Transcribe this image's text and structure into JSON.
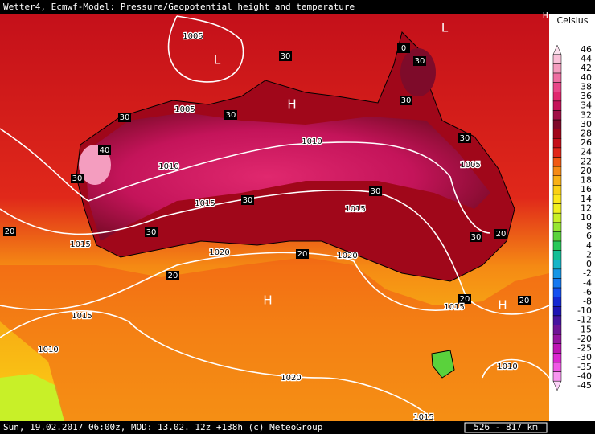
{
  "header": {
    "title": "Wetter4, Ecmwf-Model: Pressure/Geopotential height and temperature",
    "corner": "H"
  },
  "legend": {
    "title": "Celsius",
    "items": [
      {
        "value": 46,
        "color": "#fbe0ee"
      },
      {
        "value": 44,
        "color": "#f9c0d8"
      },
      {
        "value": 42,
        "color": "#f49dbf"
      },
      {
        "value": 40,
        "color": "#ee6fa2"
      },
      {
        "value": 38,
        "color": "#e84889"
      },
      {
        "value": 36,
        "color": "#e0286e"
      },
      {
        "value": 34,
        "color": "#c4145a"
      },
      {
        "value": 32,
        "color": "#a01046"
      },
      {
        "value": 30,
        "color": "#7e0b2a"
      },
      {
        "value": 28,
        "color": "#a0071a"
      },
      {
        "value": 26,
        "color": "#c4101a"
      },
      {
        "value": 24,
        "color": "#e0281a"
      },
      {
        "value": 22,
        "color": "#f05a14"
      },
      {
        "value": 20,
        "color": "#f58a14"
      },
      {
        "value": 18,
        "color": "#f8b014"
      },
      {
        "value": 16,
        "color": "#fbd014"
      },
      {
        "value": 14,
        "color": "#fde81a"
      },
      {
        "value": 12,
        "color": "#f0f020"
      },
      {
        "value": 10,
        "color": "#c8f028"
      },
      {
        "value": 8,
        "color": "#96e632"
      },
      {
        "value": 6,
        "color": "#5ad23c"
      },
      {
        "value": 4,
        "color": "#28c85a"
      },
      {
        "value": 2,
        "color": "#14be96"
      },
      {
        "value": 0,
        "color": "#14b4c8"
      },
      {
        "value": -2,
        "color": "#1496e6"
      },
      {
        "value": -4,
        "color": "#1478f0"
      },
      {
        "value": -6,
        "color": "#1450f0"
      },
      {
        "value": -8,
        "color": "#1428d2"
      },
      {
        "value": -10,
        "color": "#1e14b4"
      },
      {
        "value": -12,
        "color": "#4614a0"
      },
      {
        "value": -15,
        "color": "#6e1496"
      },
      {
        "value": -20,
        "color": "#9614a0"
      },
      {
        "value": -25,
        "color": "#be14b4"
      },
      {
        "value": -30,
        "color": "#dc28d2"
      },
      {
        "value": -35,
        "color": "#f05ae6"
      },
      {
        "value": -40,
        "color": "#f896f0"
      },
      {
        "value": -45,
        "color": "#fcd2f8"
      }
    ]
  },
  "map_labels": [
    "1005",
    "L",
    "30",
    "L",
    "0",
    "30",
    "H",
    "1005",
    "30",
    "30",
    "30",
    "1010",
    "30",
    "40",
    "1010",
    "1005",
    "30",
    "1015",
    "30",
    "30",
    "1015",
    "20",
    "30",
    "30",
    "20",
    "1015",
    "1020",
    "20",
    "1020",
    "20",
    "H",
    "20",
    "1015",
    "H",
    "20",
    "1015",
    "1010",
    "1020",
    "1010",
    "1015"
  ],
  "footer": {
    "text": "Sun, 19.02.2017 06:00z, MOD: 13.02. 12z +138h (c) MeteoGroup",
    "scale": "526 - 817 km"
  }
}
